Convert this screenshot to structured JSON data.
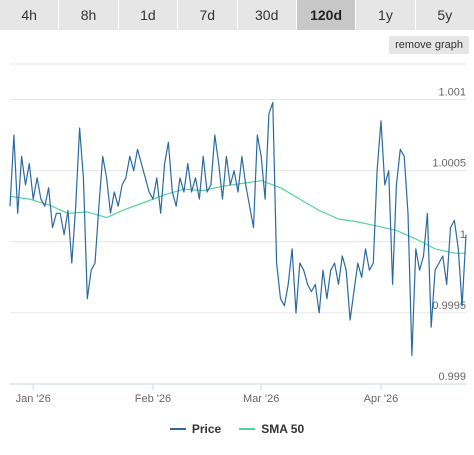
{
  "tabs": [
    {
      "label": "4h",
      "active": false
    },
    {
      "label": "8h",
      "active": false
    },
    {
      "label": "1d",
      "active": false
    },
    {
      "label": "7d",
      "active": false
    },
    {
      "label": "30d",
      "active": false
    },
    {
      "label": "120d",
      "active": true
    },
    {
      "label": "1y",
      "active": false
    },
    {
      "label": "5y",
      "active": false
    }
  ],
  "remove_graph_label": "remove graph",
  "colors": {
    "price": "#2b6aa0",
    "sma": "#55d39a"
  },
  "legend": {
    "price": "Price",
    "sma": "SMA 50"
  },
  "chart_data": {
    "type": "line",
    "x_ticks": [
      "Jan '26",
      "Feb '26",
      "Mar '26",
      "Apr '26"
    ],
    "x_tick_days": [
      6,
      37,
      65,
      96
    ],
    "xlim": [
      0,
      118
    ],
    "y_ticks": [
      "1.001",
      "1.0005",
      "1",
      "0.9995",
      "0.999"
    ],
    "y_tick_values": [
      1.001,
      1.0005,
      1.0,
      0.9995,
      0.999
    ],
    "ylim": [
      0.999,
      1.00125
    ],
    "grid": true,
    "legend_position": "bottom",
    "series": [
      {
        "name": "Price",
        "x": [
          0,
          1,
          2,
          3,
          4,
          5,
          6,
          7,
          8,
          9,
          10,
          11,
          12,
          13,
          14,
          15,
          16,
          17,
          18,
          19,
          20,
          21,
          22,
          23,
          24,
          25,
          26,
          27,
          28,
          29,
          30,
          31,
          32,
          33,
          34,
          35,
          36,
          37,
          38,
          39,
          40,
          41,
          42,
          43,
          44,
          45,
          46,
          47,
          48,
          49,
          50,
          51,
          52,
          53,
          54,
          55,
          56,
          57,
          58,
          59,
          60,
          61,
          62,
          63,
          64,
          65,
          66,
          67,
          68,
          69,
          70,
          71,
          72,
          73,
          74,
          75,
          76,
          77,
          78,
          79,
          80,
          81,
          82,
          83,
          84,
          85,
          86,
          87,
          88,
          89,
          90,
          91,
          92,
          93,
          94,
          95,
          96,
          97,
          98,
          99,
          100,
          101,
          102,
          103,
          104,
          105,
          106,
          107,
          108,
          109,
          110,
          111,
          112,
          113,
          114,
          115,
          116,
          117,
          118
        ],
        "y": [
          1.00025,
          1.00075,
          1.0002,
          1.0006,
          1.0004,
          1.00055,
          1.0003,
          1.00045,
          1.0003,
          1.00025,
          1.00038,
          1.0001,
          1.0002,
          1.0002,
          1.00005,
          1.00022,
          0.99985,
          1.00025,
          1.0008,
          1.00045,
          0.9996,
          0.9998,
          0.99985,
          1.00025,
          1.0006,
          1.00045,
          1.0002,
          1.00035,
          1.00025,
          1.0004,
          1.00045,
          1.0006,
          1.0005,
          1.00065,
          1.00055,
          1.00045,
          1.00035,
          1.0003,
          1.00045,
          1.0002,
          1.00055,
          1.0007,
          1.00035,
          1.00025,
          1.00045,
          1.00035,
          1.00055,
          1.00035,
          1.00045,
          1.0003,
          1.0006,
          1.00035,
          1.0004,
          1.00075,
          1.00055,
          1.0003,
          1.0006,
          1.0004,
          1.0005,
          1.00035,
          1.0006,
          1.0004,
          1.00025,
          1.0001,
          1.00075,
          1.0006,
          1.0003,
          1.0009,
          1.00098,
          0.99985,
          0.9996,
          0.99955,
          0.9997,
          0.99995,
          0.9995,
          0.99985,
          0.9998,
          0.9997,
          0.99965,
          0.9997,
          0.9995,
          0.9998,
          0.9996,
          0.9998,
          0.99985,
          0.9997,
          0.9999,
          0.9998,
          0.99945,
          0.99965,
          0.99985,
          0.99975,
          0.99995,
          0.9998,
          0.99985,
          1.0005,
          1.00085,
          1.0004,
          1.0005,
          0.9997,
          1.0004,
          1.00065,
          1.0006,
          1.0002,
          0.9992,
          0.99995,
          0.9998,
          0.9999,
          1.0002,
          0.9994,
          0.9998,
          0.99985,
          0.9999,
          0.9997,
          1.0001,
          1.00015,
          0.99995,
          0.99955,
          1.00005
        ]
      },
      {
        "name": "SMA 50",
        "x": [
          0,
          5,
          10,
          15,
          20,
          25,
          30,
          35,
          40,
          45,
          50,
          55,
          60,
          65,
          70,
          75,
          80,
          85,
          90,
          95,
          100,
          105,
          110,
          115,
          118
        ],
        "y": [
          1.00032,
          1.0003,
          1.00026,
          1.0002,
          1.00021,
          1.00017,
          1.00023,
          1.00028,
          1.00033,
          1.00037,
          1.00036,
          1.00039,
          1.00041,
          1.00043,
          1.00038,
          1.0003,
          1.00022,
          1.00016,
          1.00014,
          1.00011,
          1.00008,
          1.00002,
          0.99995,
          0.99992,
          0.99992
        ]
      }
    ]
  }
}
